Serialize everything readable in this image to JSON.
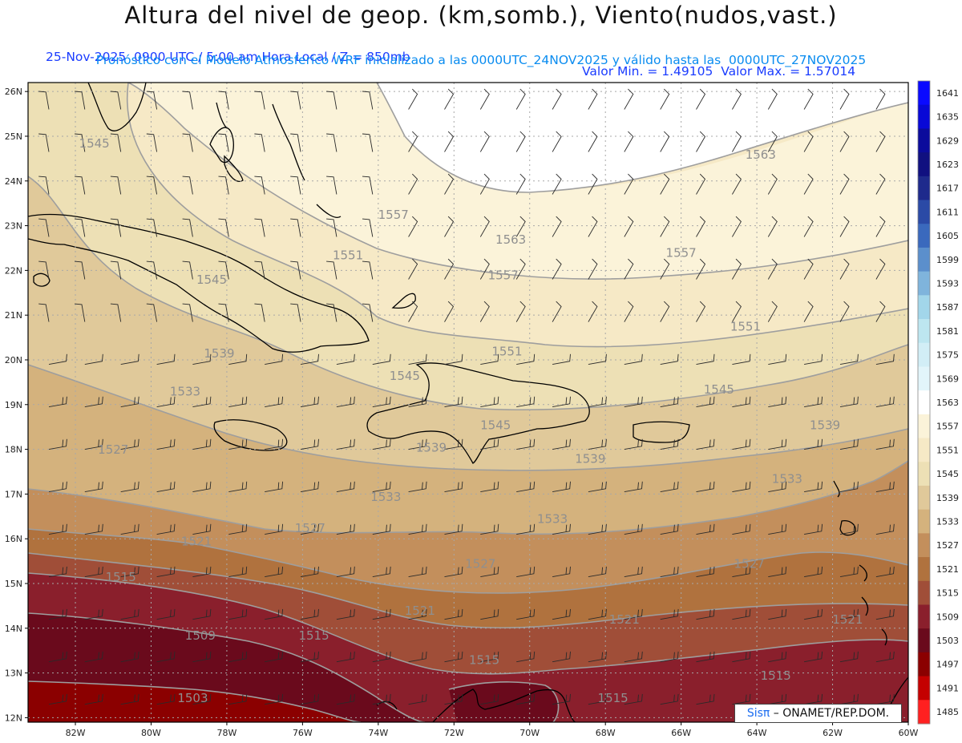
{
  "header": {
    "title": "Altura del nivel de geop. (km,somb.), Viento(nudos,vast.)",
    "valid_time": "25-Nov-2025  0900 UTC / 5:00 am Hora Local / Z = 850mb",
    "value_range": "Valor Min. = 1.49105  Valor Max. = 1.57014",
    "model_info": "Pronóstico con el Modelo Atmosferico WRF inicializado a las 0000UTC_24NOV2025 y válido hasta las  0000UTC_27NOV2025"
  },
  "map": {
    "lat_labels": [
      "26N",
      "25N",
      "24N",
      "23N",
      "22N",
      "21N",
      "20N",
      "19N",
      "18N",
      "17N",
      "16N",
      "15N",
      "14N",
      "13N",
      "12N"
    ],
    "lon_labels": [
      "82W",
      "80W",
      "78W",
      "76W",
      "74W",
      "72W",
      "70W",
      "68W",
      "66W",
      "64W",
      "62W",
      "60W"
    ],
    "lon_values": [
      -82,
      -80,
      -78,
      -76,
      -74,
      -72,
      -70,
      -68,
      -66,
      -64,
      -62,
      -60
    ],
    "lat_values": [
      26,
      25,
      24,
      23,
      22,
      21,
      20,
      19,
      18,
      17,
      16,
      15,
      14,
      13,
      12
    ],
    "contour_labels": [
      {
        "text": "1545",
        "lon": -81.5,
        "lat": 24.75
      },
      {
        "text": "1545",
        "lon": -78.4,
        "lat": 21.7
      },
      {
        "text": "1539",
        "lon": -78.2,
        "lat": 20.05
      },
      {
        "text": "1533",
        "lon": -79.1,
        "lat": 19.2
      },
      {
        "text": "1527",
        "lon": -81.0,
        "lat": 17.9
      },
      {
        "text": "1521",
        "lon": -78.8,
        "lat": 15.85
      },
      {
        "text": "1515",
        "lon": -80.8,
        "lat": 15.05
      },
      {
        "text": "1509",
        "lon": -78.7,
        "lat": 13.75
      },
      {
        "text": "1503",
        "lon": -78.9,
        "lat": 12.35
      },
      {
        "text": "1557",
        "lon": -73.6,
        "lat": 23.15
      },
      {
        "text": "1551",
        "lon": -74.8,
        "lat": 22.25
      },
      {
        "text": "1563",
        "lon": -70.5,
        "lat": 22.6
      },
      {
        "text": "1557",
        "lon": -70.7,
        "lat": 21.8
      },
      {
        "text": "1563",
        "lon": -63.9,
        "lat": 24.5
      },
      {
        "text": "1557",
        "lon": -66.0,
        "lat": 22.3
      },
      {
        "text": "1551",
        "lon": -64.3,
        "lat": 20.65
      },
      {
        "text": "1551",
        "lon": -70.6,
        "lat": 20.1
      },
      {
        "text": "1545",
        "lon": -73.3,
        "lat": 19.55
      },
      {
        "text": "1545",
        "lon": -70.9,
        "lat": 18.45
      },
      {
        "text": "1539",
        "lon": -72.6,
        "lat": 17.95
      },
      {
        "text": "1545",
        "lon": -65.0,
        "lat": 19.25
      },
      {
        "text": "1539",
        "lon": -62.2,
        "lat": 18.45
      },
      {
        "text": "1539",
        "lon": -68.4,
        "lat": 17.7
      },
      {
        "text": "1533",
        "lon": -73.8,
        "lat": 16.85
      },
      {
        "text": "1533",
        "lon": -63.2,
        "lat": 17.25
      },
      {
        "text": "1533",
        "lon": -69.4,
        "lat": 16.35
      },
      {
        "text": "1527",
        "lon": -75.8,
        "lat": 16.15
      },
      {
        "text": "1527",
        "lon": -71.3,
        "lat": 15.35
      },
      {
        "text": "1527",
        "lon": -64.2,
        "lat": 15.35
      },
      {
        "text": "1521",
        "lon": -72.9,
        "lat": 14.3
      },
      {
        "text": "1521",
        "lon": -67.5,
        "lat": 14.1
      },
      {
        "text": "1521",
        "lon": -61.6,
        "lat": 14.1
      },
      {
        "text": "1515",
        "lon": -75.7,
        "lat": 13.75
      },
      {
        "text": "1515",
        "lon": -71.2,
        "lat": 13.2
      },
      {
        "text": "1515",
        "lon": -67.8,
        "lat": 12.35
      },
      {
        "text": "1515",
        "lon": -63.5,
        "lat": 12.85
      }
    ]
  },
  "colorbar": {
    "labels": [
      "1641",
      "1635",
      "1629",
      "1623",
      "1617",
      "1611",
      "1605",
      "1599",
      "1593",
      "1587",
      "1581",
      "1575",
      "1569",
      "1563",
      "1557",
      "1551",
      "1545",
      "1539",
      "1533",
      "1527",
      "1521",
      "1515",
      "1509",
      "1503",
      "1497",
      "1491",
      "1485"
    ],
    "colors": [
      "#0a0aff",
      "#0808d6",
      "#0b0b9c",
      "#101080",
      "#1e2a8c",
      "#2b4aa6",
      "#3a69bd",
      "#5b8fcc",
      "#7fb4dc",
      "#a2d6ea",
      "#bde6f0",
      "#d2eef6",
      "#e2f5fa",
      "#ffffff",
      "#fbf3d9",
      "#f6e9c6",
      "#ede0b5",
      "#e0c99a",
      "#d4b27d",
      "#c38f5c",
      "#b0723e",
      "#a04e38",
      "#8a1f2c",
      "#6a0a1c",
      "#8b0000",
      "#c40000",
      "#ff2020"
    ]
  },
  "credit": {
    "brand": "Sisπ",
    "org": " – ONAMET/REP.DOM."
  }
}
